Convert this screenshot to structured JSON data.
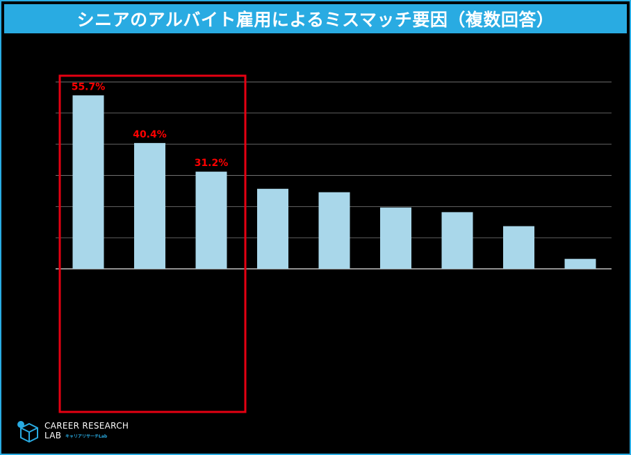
{
  "title": "シニアのアルバイト雇用によるミスマッチ要因（複数回答）",
  "logo": {
    "line1": "CAREER RESEARCH",
    "line2": "LAB",
    "tagline": "キャリアリサーチLab"
  },
  "colors": {
    "accent": "#29abe2",
    "bar": "#a9d7ea",
    "label": "#ff0000",
    "highlight_box": "#e60012",
    "grid": "#ffffff"
  },
  "chart_data": {
    "type": "bar",
    "categories": [
      "",
      "",
      "",
      "",
      "",
      "",
      "",
      "",
      ""
    ],
    "values": [
      55.7,
      40.4,
      31.2,
      25.7,
      24.6,
      19.7,
      18.2,
      13.7,
      3.2
    ],
    "data_labels": [
      "55.7%",
      "40.4%",
      "31.2%",
      "",
      "",
      "",
      "",
      "",
      ""
    ],
    "ylim": [
      0,
      60
    ],
    "grid": true,
    "highlight_first_n": 3
  }
}
